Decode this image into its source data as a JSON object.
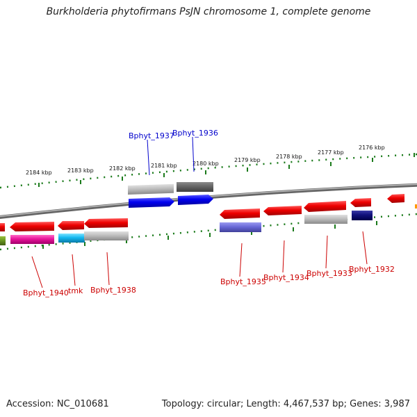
{
  "title": "Burkholderia phytofirmans PsJN chromosome 1, complete genome",
  "footer": {
    "accession": "Accession: NC_010681",
    "summary": "Topology: circular; Length: 4,467,537 bp; Genes: 3,987"
  },
  "ticks": [
    "2184 kbp",
    "2183 kbp",
    "2182 kbp",
    "2181 kbp",
    "2180 kbp",
    "2179 kbp",
    "2178 kbp",
    "2177 kbp",
    "2176 kbp"
  ],
  "gene_labels": {
    "bphyt_1937": "Bphyt_1937",
    "bphyt_1936": "Bphyt_1936",
    "bphyt_1940": "Bphyt_1940",
    "tmk": "tmk",
    "bphyt_1938": "Bphyt_1938",
    "bphyt_1935": "Bphyt_1935",
    "bphyt_1934": "Bphyt_1934",
    "bphyt_1933": "Bphyt_1933",
    "bphyt_1932": "Bphyt_1932"
  },
  "colors": {
    "forward_label": "#0000cc",
    "reverse_label": "#cc0000",
    "tick": "#1a7a1a",
    "backbone": "#888888"
  }
}
